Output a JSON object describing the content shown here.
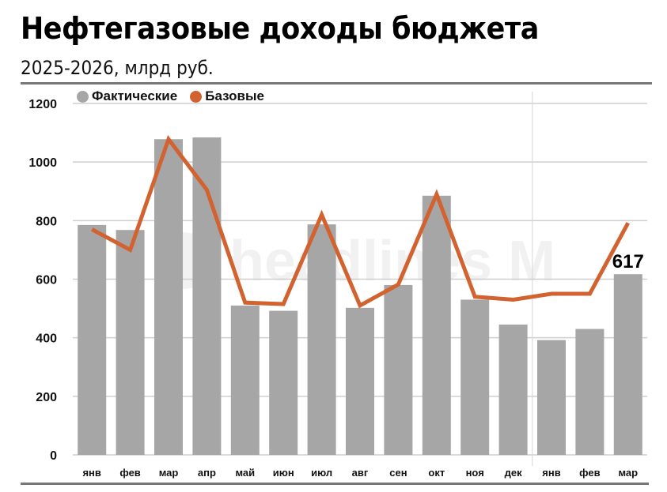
{
  "header": {
    "title": "Нефтегазовые доходы бюджета",
    "subtitle": "2025-2026, млрд руб."
  },
  "legend": [
    {
      "label": "Фактические",
      "color": "#a6a6a6"
    },
    {
      "label": "Базовые",
      "color": "#d2622f"
    }
  ],
  "watermark": "headlines M",
  "colors": {
    "bar": "#a6a6a6",
    "line": "#d2622f",
    "grid": "#cfcfcf"
  },
  "chart_data": {
    "type": "bar",
    "title": "Нефтегазовые доходы бюджета",
    "subtitle": "2025-2026, млрд руб.",
    "xlabel": "",
    "ylabel": "",
    "ylim": [
      0,
      1200
    ],
    "yticks": [
      0,
      200,
      400,
      600,
      800,
      1000,
      1200
    ],
    "grid": true,
    "legend_position": "top-left",
    "categories": [
      "янв",
      "фев",
      "мар",
      "апр",
      "май",
      "июн",
      "июл",
      "авг",
      "сен",
      "окт",
      "ноя",
      "дек",
      "янв",
      "фев",
      "мар"
    ],
    "year_separator_after_index": 11,
    "series": [
      {
        "name": "Фактические",
        "type": "bar",
        "values": [
          785,
          768,
          1078,
          1084,
          510,
          492,
          787,
          502,
          580,
          885,
          530,
          445,
          392,
          430,
          617
        ]
      },
      {
        "name": "Базовые",
        "type": "line",
        "values": [
          770,
          700,
          1078,
          905,
          520,
          515,
          820,
          510,
          582,
          890,
          540,
          530,
          550,
          550,
          792
        ]
      }
    ],
    "annotations": [
      {
        "index": 14,
        "text": "617"
      }
    ]
  }
}
